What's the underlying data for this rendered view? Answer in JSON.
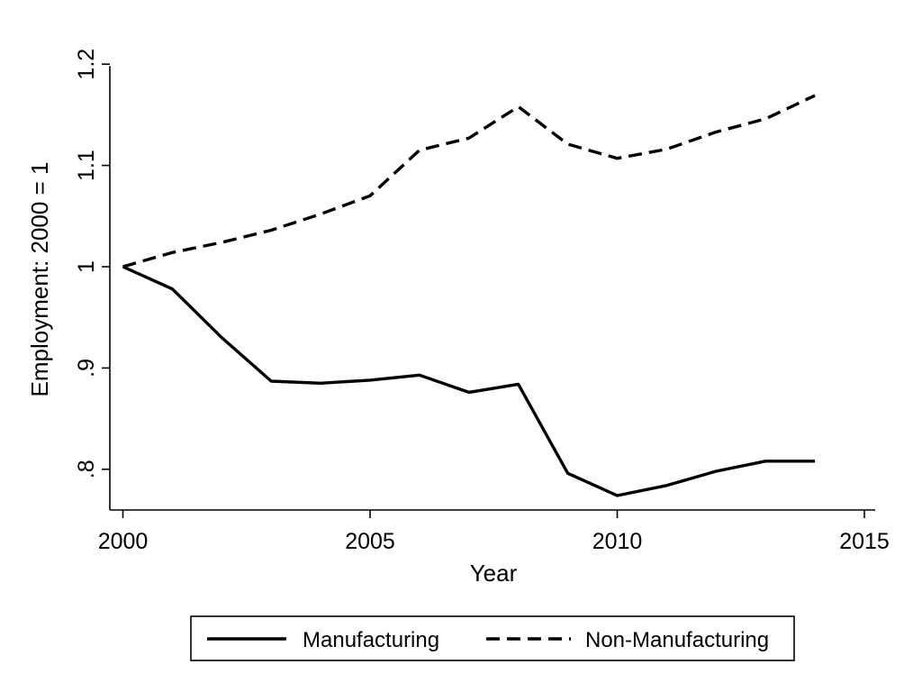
{
  "chart_data": {
    "type": "line",
    "xlabel": "Year",
    "ylabel": "Employment: 2000 = 1",
    "xlim": [
      2000,
      2015
    ],
    "ylim": [
      0.78,
      1.2
    ],
    "x_ticks": [
      {
        "value": 2000,
        "label": "2000"
      },
      {
        "value": 2005,
        "label": "2005"
      },
      {
        "value": 2010,
        "label": "2010"
      },
      {
        "value": 2015,
        "label": "2015"
      }
    ],
    "y_ticks": [
      {
        "value": 0.8,
        "label": ".8"
      },
      {
        "value": 0.9,
        "label": ".9"
      },
      {
        "value": 1.0,
        "label": "1"
      },
      {
        "value": 1.1,
        "label": "1.1"
      },
      {
        "value": 1.2,
        "label": "1.2"
      }
    ],
    "grid": false,
    "legend_position": "bottom",
    "x": [
      2000,
      2001,
      2002,
      2003,
      2004,
      2005,
      2006,
      2007,
      2008,
      2009,
      2010,
      2011,
      2012,
      2013,
      2014
    ],
    "series": [
      {
        "name": "Manufacturing",
        "style": "solid",
        "color": "#000000",
        "values": [
          1.0,
          0.978,
          0.93,
          0.887,
          0.885,
          0.888,
          0.893,
          0.876,
          0.884,
          0.796,
          0.774,
          0.784,
          0.798,
          0.808,
          0.808
        ]
      },
      {
        "name": "Non-Manufacturing",
        "style": "dashed",
        "color": "#000000",
        "values": [
          1.0,
          1.014,
          1.024,
          1.036,
          1.052,
          1.07,
          1.115,
          1.127,
          1.158,
          1.121,
          1.107,
          1.116,
          1.133,
          1.146,
          1.169
        ]
      }
    ]
  }
}
